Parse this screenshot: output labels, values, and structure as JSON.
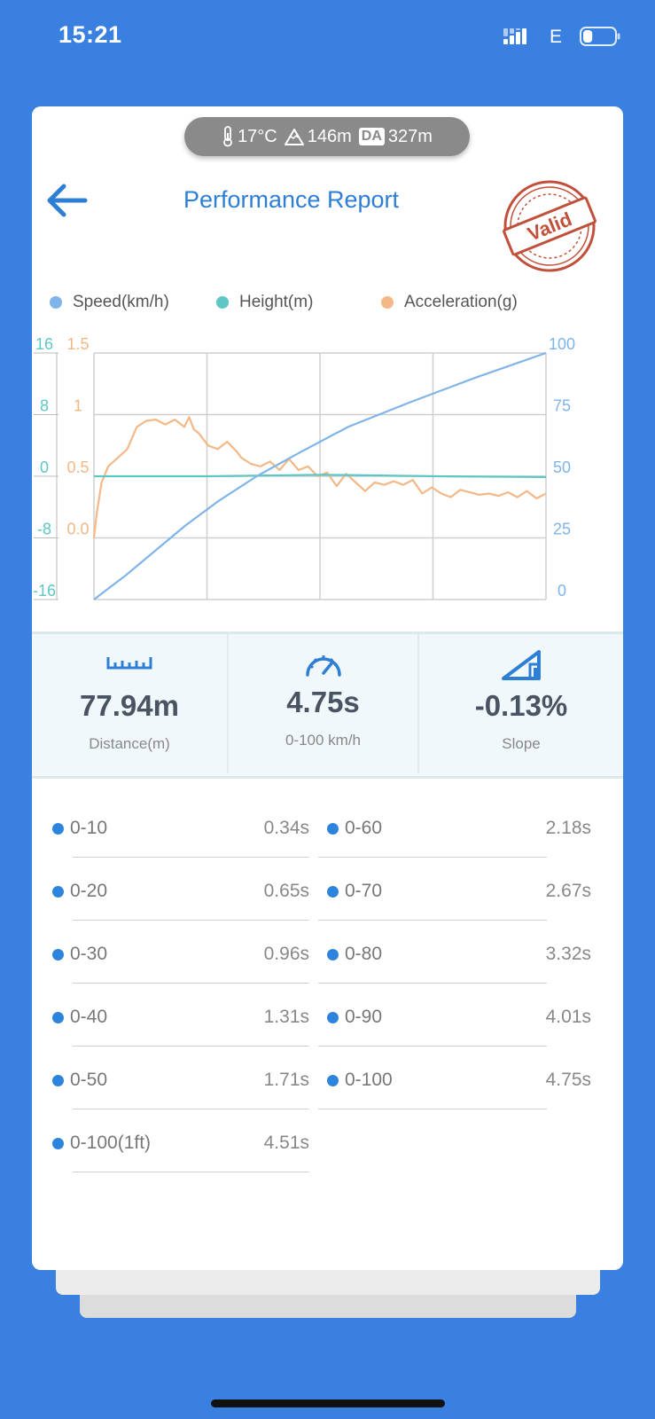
{
  "status_bar": {
    "time": "15:21",
    "network": "E",
    "battery_level": 0.3
  },
  "env": {
    "temperature": "17°C",
    "altitude": "146m",
    "da_badge": "DA",
    "density_altitude": "327m"
  },
  "header": {
    "title": "Performance Report",
    "stamp_text": "Valid"
  },
  "legend": [
    {
      "label": "Speed(km/h)",
      "color": "#7fb4ea"
    },
    {
      "label": "Height(m)",
      "color": "#5ec6c4"
    },
    {
      "label": "Acceleration(g)",
      "color": "#f4b887"
    }
  ],
  "chart_data": {
    "type": "line",
    "x_range": [
      0,
      4.75
    ],
    "axes": {
      "height": {
        "ticks": [
          "16",
          "8",
          "0",
          "-8",
          "-16"
        ],
        "range": [
          -16,
          16
        ],
        "color": "#5ec6c4"
      },
      "acceleration": {
        "ticks": [
          "1.5",
          "1",
          "0.5",
          "0.0"
        ],
        "range": [
          -0.5,
          1.5
        ],
        "color": "#f4b887"
      },
      "speed": {
        "ticks": [
          "100",
          "75",
          "50",
          "25",
          "0"
        ],
        "range": [
          0,
          100
        ],
        "color": "#7fb4ea"
      }
    },
    "grid": true,
    "series": [
      {
        "name": "Speed(km/h)",
        "color": "#7fb4ea",
        "x": [
          0,
          0.34,
          0.65,
          0.96,
          1.31,
          1.71,
          2.18,
          2.67,
          3.32,
          4.01,
          4.75
        ],
        "y": [
          0,
          10,
          20,
          30,
          40,
          50,
          60,
          70,
          80,
          90,
          100
        ]
      },
      {
        "name": "Height(m)",
        "color": "#5ec6c4",
        "x": [
          0,
          1.2,
          2.4,
          3.6,
          4.75
        ],
        "y": [
          0,
          0,
          0.2,
          0,
          -0.1
        ]
      },
      {
        "name": "Acceleration(g)",
        "color": "#f4b887",
        "x": [
          0,
          0.03,
          0.08,
          0.15,
          0.25,
          0.35,
          0.45,
          0.55,
          0.65,
          0.75,
          0.85,
          0.95,
          1.0,
          1.05,
          1.1,
          1.2,
          1.3,
          1.4,
          1.5,
          1.55,
          1.65,
          1.75,
          1.85,
          1.95,
          2.05,
          2.15,
          2.25,
          2.35,
          2.45,
          2.55,
          2.65,
          2.75,
          2.85,
          2.95,
          3.05,
          3.15,
          3.25,
          3.35,
          3.45,
          3.55,
          3.65,
          3.75,
          3.85,
          3.95,
          4.05,
          4.15,
          4.25,
          4.35,
          4.45,
          4.55,
          4.65,
          4.75
        ],
        "y": [
          0.0,
          0.2,
          0.45,
          0.58,
          0.65,
          0.72,
          0.9,
          0.95,
          0.96,
          0.92,
          0.96,
          0.9,
          0.98,
          0.88,
          0.85,
          0.75,
          0.72,
          0.78,
          0.7,
          0.65,
          0.6,
          0.58,
          0.62,
          0.55,
          0.64,
          0.55,
          0.58,
          0.5,
          0.53,
          0.42,
          0.52,
          0.45,
          0.38,
          0.45,
          0.43,
          0.46,
          0.43,
          0.47,
          0.36,
          0.41,
          0.36,
          0.33,
          0.39,
          0.37,
          0.35,
          0.36,
          0.34,
          0.37,
          0.33,
          0.38,
          0.32,
          0.36
        ]
      }
    ]
  },
  "stats": [
    {
      "value": "77.94m",
      "label": "Distance(m)",
      "icon": "ruler-icon"
    },
    {
      "value": "4.75s",
      "label": "0-100 km/h",
      "icon": "speedometer-icon"
    },
    {
      "value": "-0.13%",
      "label": "Slope",
      "icon": "slope-icon"
    }
  ],
  "splits": [
    {
      "label": "0-10",
      "value": "0.34s"
    },
    {
      "label": "0-60",
      "value": "2.18s"
    },
    {
      "label": "0-20",
      "value": "0.65s"
    },
    {
      "label": "0-70",
      "value": "2.67s"
    },
    {
      "label": "0-30",
      "value": "0.96s"
    },
    {
      "label": "0-80",
      "value": "3.32s"
    },
    {
      "label": "0-40",
      "value": "1.31s"
    },
    {
      "label": "0-90",
      "value": "4.01s"
    },
    {
      "label": "0-50",
      "value": "1.71s"
    },
    {
      "label": "0-100",
      "value": "4.75s"
    },
    {
      "label": "0-100(1ft)",
      "value": "4.51s"
    }
  ],
  "colors": {
    "background": "#3a80e0",
    "accent": "#2d7fd6",
    "stamp": "#c0503a"
  }
}
